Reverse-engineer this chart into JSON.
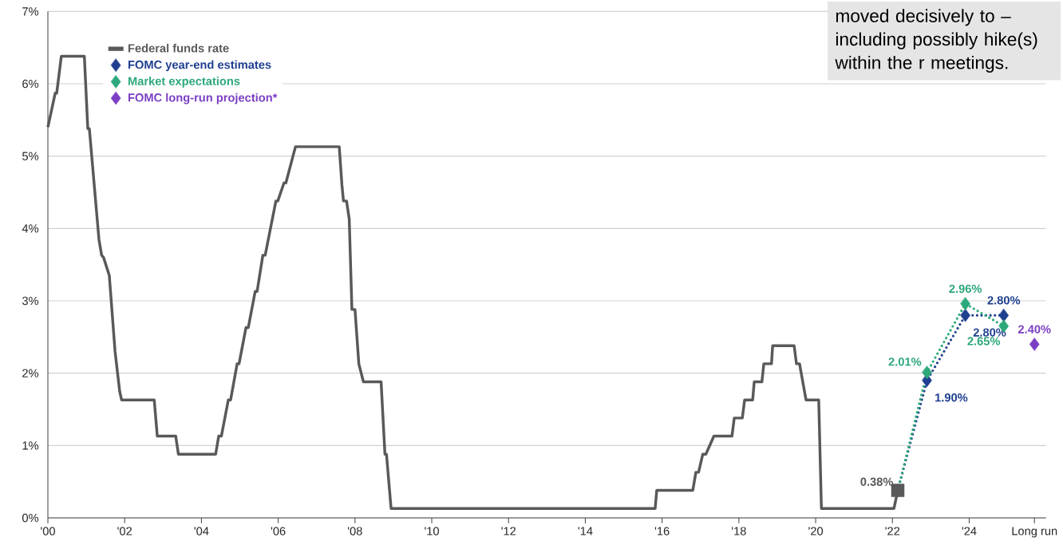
{
  "chart_data": {
    "type": "line",
    "xlim": [
      2000,
      2026
    ],
    "ylim": [
      0,
      7
    ],
    "xticks": [
      {
        "value": 2000,
        "label": "'00"
      },
      {
        "value": 2002,
        "label": "'02"
      },
      {
        "value": 2004,
        "label": "'04"
      },
      {
        "value": 2006,
        "label": "'06"
      },
      {
        "value": 2008,
        "label": "'08"
      },
      {
        "value": 2010,
        "label": "'10"
      },
      {
        "value": 2012,
        "label": "'12"
      },
      {
        "value": 2014,
        "label": "'14"
      },
      {
        "value": 2016,
        "label": "'16"
      },
      {
        "value": 2018,
        "label": "'18"
      },
      {
        "value": 2020,
        "label": "'20"
      },
      {
        "value": 2022,
        "label": "'22"
      },
      {
        "value": 2024,
        "label": "'24"
      },
      {
        "value": 2025.7,
        "label": "Long run"
      }
    ],
    "yticks": [
      {
        "value": 0,
        "label": "0%"
      },
      {
        "value": 1,
        "label": "1%"
      },
      {
        "value": 2,
        "label": "2%"
      },
      {
        "value": 3,
        "label": "3%"
      },
      {
        "value": 4,
        "label": "4%"
      },
      {
        "value": 5,
        "label": "5%"
      },
      {
        "value": 6,
        "label": "6%"
      },
      {
        "value": 7,
        "label": "7%"
      }
    ],
    "grid": "y",
    "legend": "top left",
    "annotations": [
      "moved decisively to – including possibly hike(s) within the r meetings."
    ],
    "series": [
      {
        "name": "Federal funds rate",
        "color": "#595959",
        "marker": "none",
        "line_style": "solid",
        "x": [
          2000.0,
          2000.19,
          2000.23,
          2000.35,
          2000.95,
          2001.04,
          2001.08,
          2001.33,
          2001.4,
          2001.45,
          2001.6,
          2001.75,
          2001.87,
          2001.92,
          2002.77,
          2002.85,
          2003.33,
          2003.4,
          2004.37,
          2004.45,
          2004.52,
          2004.7,
          2004.76,
          2004.93,
          2004.98,
          2005.16,
          2005.22,
          2005.4,
          2005.45,
          2005.6,
          2005.66,
          2005.94,
          2005.99,
          2006.15,
          2006.2,
          2006.45,
          2007.59,
          2007.66,
          2007.7,
          2007.78,
          2007.85,
          2007.92,
          2008.0,
          2008.1,
          2008.22,
          2008.68,
          2008.78,
          2008.82,
          2008.94,
          2015.82,
          2015.86,
          2016.8,
          2016.88,
          2016.95,
          2017.06,
          2017.14,
          2017.35,
          2017.82,
          2017.88,
          2018.09,
          2018.15,
          2018.36,
          2018.4,
          2018.6,
          2018.65,
          2018.85,
          2018.88,
          2019.44,
          2019.5,
          2019.58,
          2019.75,
          2020.08,
          2020.15,
          2022.04,
          2022.14
        ],
        "values": [
          5.4,
          5.87,
          5.87,
          6.38,
          6.38,
          5.38,
          5.38,
          3.85,
          3.63,
          3.6,
          3.35,
          2.3,
          1.75,
          1.63,
          1.63,
          1.13,
          1.13,
          0.88,
          0.88,
          1.13,
          1.13,
          1.63,
          1.63,
          2.13,
          2.13,
          2.63,
          2.63,
          3.13,
          3.13,
          3.63,
          3.63,
          4.38,
          4.38,
          4.63,
          4.63,
          5.13,
          5.13,
          4.6,
          4.38,
          4.38,
          4.13,
          2.88,
          2.88,
          2.13,
          1.88,
          1.88,
          0.88,
          0.88,
          0.13,
          0.13,
          0.38,
          0.38,
          0.63,
          0.63,
          0.88,
          0.88,
          1.13,
          1.13,
          1.38,
          1.38,
          1.63,
          1.63,
          1.88,
          1.88,
          2.13,
          2.13,
          2.38,
          2.38,
          2.13,
          2.13,
          1.63,
          1.63,
          0.13,
          0.13,
          0.38
        ]
      },
      {
        "type": "scatter",
        "color": "#595959",
        "marker": "square",
        "x": [
          2022.14
        ],
        "values": [
          0.38
        ],
        "value_labels": [
          "0.38%"
        ]
      },
      {
        "name": "FOMC year-end estimates",
        "color": "#1f3f8f",
        "marker": "diamond",
        "line_style": "dotted",
        "x": [
          2022.14,
          2022.9,
          2023.9,
          2024.9
        ],
        "values": [
          0.38,
          1.9,
          2.8,
          2.8
        ],
        "value_labels": [
          null,
          "1.90%",
          "2.80%",
          "2.80%"
        ]
      },
      {
        "name": "Market expectations",
        "color": "#2ca87a",
        "marker": "diamond",
        "line_style": "dotted",
        "x": [
          2022.14,
          2022.9,
          2023.9,
          2024.9
        ],
        "values": [
          0.38,
          2.01,
          2.96,
          2.65
        ],
        "value_labels": [
          null,
          "2.01%",
          "2.96%",
          "2.65%"
        ]
      },
      {
        "name": "FOMC long-run projection*",
        "type": "scatter",
        "color": "#7b3fc4",
        "marker": "diamond",
        "x": [
          2025.7
        ],
        "values": [
          2.4
        ],
        "value_labels": [
          "2.40%"
        ]
      }
    ]
  }
}
